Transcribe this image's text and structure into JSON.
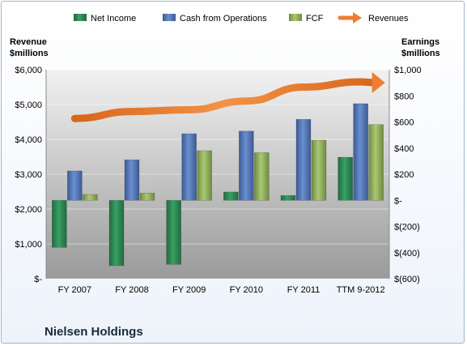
{
  "chart_data": {
    "type": "bar",
    "title": "Nielsen Holdings",
    "categories": [
      "FY 2007",
      "FY 2008",
      "FY 2009",
      "FY 2010",
      "FY 2011",
      "TTM 9-2012"
    ],
    "series": [
      {
        "name": "Net Income",
        "axis": "right",
        "type": "bar",
        "color": "#2e8b57",
        "values": [
          -360,
          -500,
          -490,
          64,
          37,
          330
        ]
      },
      {
        "name": "Cash from Operations",
        "axis": "right",
        "type": "bar",
        "color": "#4f74b6",
        "values": [
          225,
          310,
          510,
          530,
          620,
          740
        ]
      },
      {
        "name": "FCF",
        "axis": "right",
        "type": "bar",
        "color": "#8fb058",
        "values": [
          45,
          55,
          380,
          365,
          460,
          580
        ]
      },
      {
        "name": "Revenues",
        "axis": "left",
        "type": "line",
        "color": "#ed7d31",
        "values": [
          4600,
          4800,
          4850,
          5100,
          5500,
          5650
        ]
      }
    ],
    "left_axis": {
      "title_line1": "Revenue",
      "title_line2": "$millions",
      "range": [
        0,
        6000
      ],
      "tick_values": [
        0,
        1000,
        2000,
        3000,
        4000,
        5000,
        6000
      ],
      "tick_labels": [
        "$-",
        "$1,000",
        "$2,000",
        "$3,000",
        "$4,000",
        "$5,000",
        "$6,000"
      ]
    },
    "right_axis": {
      "title_line1": "Earnings",
      "title_line2": "$millions",
      "range": [
        -600,
        1000
      ],
      "tick_values": [
        -600,
        -400,
        -200,
        0,
        200,
        400,
        600,
        800,
        1000
      ],
      "tick_labels": [
        "$(600)",
        "$(400)",
        "$(200)",
        "$-",
        "$200",
        "$400",
        "$600",
        "$800",
        "$1,000"
      ]
    },
    "legend_position": "top",
    "grid": true,
    "background": "gray-gradient"
  }
}
